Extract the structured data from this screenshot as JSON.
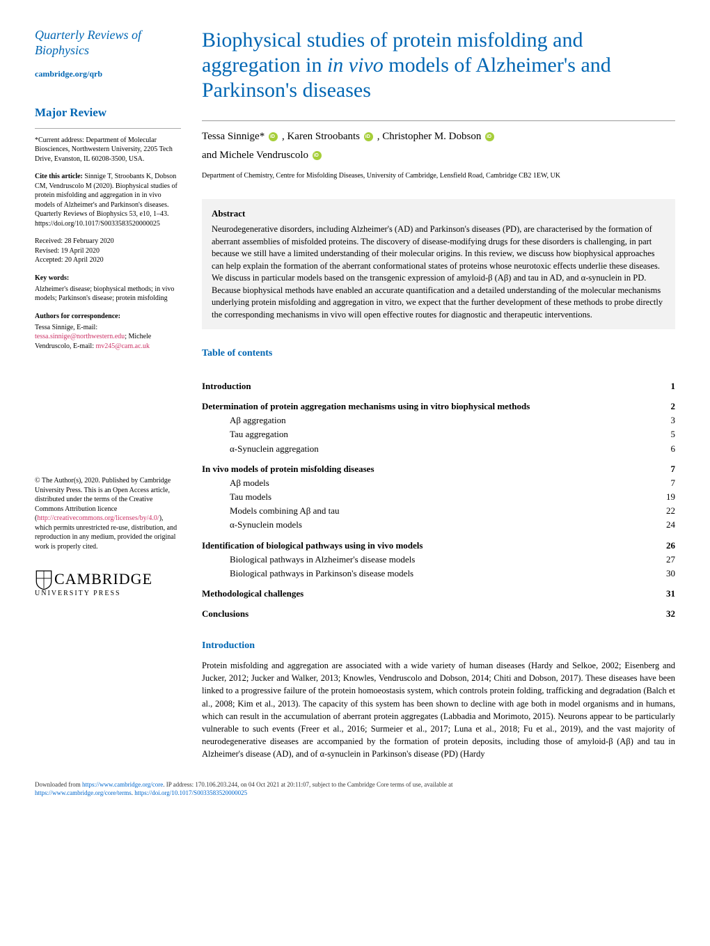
{
  "journal": {
    "title": "Quarterly Reviews of Biophysics",
    "url": "cambridge.org/qrb"
  },
  "section_label": "Major Review",
  "current_address": "*Current address: Department of Molecular Biosciences, Northwestern University, 2205 Tech Drive, Evanston, IL 60208-3500, USA.",
  "cite_label": "Cite this article:",
  "cite_text": "Sinnige T, Stroobants K, Dobson CM, Vendruscolo M (2020). Biophysical studies of protein misfolding and aggregation in in vivo models of Alzheimer's and Parkinson's diseases. Quarterly Reviews of Biophysics 53, e10, 1–43. https://doi.org/10.1017/S0033583520000025",
  "received": "Received: 28 February 2020",
  "revised": "Revised: 19 April 2020",
  "accepted": "Accepted: 20 April 2020",
  "keywords_label": "Key words:",
  "keywords": "Alzheimer's disease; biophysical methods; in vivo models; Parkinson's disease; protein misfolding",
  "corr_label": "Authors for correspondence:",
  "corr_text": "Tessa Sinnige,\nE-mail: ",
  "corr_email1": "tessa.sinnige@northwestern.edu",
  "corr_text2": ";\nMichele Vendruscolo,\nE-mail: ",
  "corr_email2": "mv245@cam.ac.uk",
  "copyright": "© The Author(s), 2020. Published by Cambridge University Press. This is an Open Access article, distributed under the terms of the Creative Commons Attribution licence (",
  "copyright_link": "http://creativecommons.org/licenses/by/4.0/",
  "copyright2": "), which permits unrestricted re-use, distribution, and reproduction in any medium, provided the original work is properly cited.",
  "logo": {
    "name": "CAMBRIDGE",
    "subtitle": "UNIVERSITY PRESS"
  },
  "title_part1": "Biophysical studies of protein misfolding and aggregation in ",
  "title_italic": "in vivo",
  "title_part2": " models of Alzheimer's and Parkinson's diseases",
  "authors": {
    "a1": "Tessa Sinnige*",
    "a2": "Karen Stroobants",
    "a3": "Christopher M. Dobson",
    "a4_pre": "and ",
    "a4": "Michele Vendruscolo"
  },
  "affiliation": "Department of Chemistry, Centre for Misfolding Diseases, University of Cambridge, Lensfield Road, Cambridge CB2 1EW, UK",
  "abstract_heading": "Abstract",
  "abstract": "Neurodegenerative disorders, including Alzheimer's (AD) and Parkinson's diseases (PD), are characterised by the formation of aberrant assemblies of misfolded proteins. The discovery of disease-modifying drugs for these disorders is challenging, in part because we still have a limited understanding of their molecular origins. In this review, we discuss how biophysical approaches can help explain the formation of the aberrant conformational states of proteins whose neurotoxic effects underlie these diseases. We discuss in particular models based on the transgenic expression of amyloid-β (Aβ) and tau in AD, and α-synuclein in PD. Because biophysical methods have enabled an accurate quantification and a detailed understanding of the molecular mechanisms underlying protein misfolding and aggregation in vitro, we expect that the further development of these methods to probe directly the corresponding mechanisms in vivo will open effective routes for diagnostic and therapeutic interventions.",
  "toc_heading": "Table of contents",
  "toc": [
    {
      "label": "Introduction",
      "page": "1",
      "level": 1
    },
    {
      "label": "Determination of protein aggregation mechanisms using in vitro biophysical methods",
      "page": "2",
      "level": 1
    },
    {
      "label": "Aβ aggregation",
      "page": "3",
      "level": 2
    },
    {
      "label": "Tau aggregation",
      "page": "5",
      "level": 2
    },
    {
      "label": "α-Synuclein aggregation",
      "page": "6",
      "level": 2
    },
    {
      "label": "In vivo models of protein misfolding diseases",
      "page": "7",
      "level": 1
    },
    {
      "label": "Aβ models",
      "page": "7",
      "level": 2
    },
    {
      "label": "Tau models",
      "page": "19",
      "level": 2
    },
    {
      "label": "Models combining Aβ and tau",
      "page": "22",
      "level": 2
    },
    {
      "label": "α-Synuclein models",
      "page": "24",
      "level": 2
    },
    {
      "label": "Identification of biological pathways using in vivo models",
      "page": "26",
      "level": 1
    },
    {
      "label": "Biological pathways in Alzheimer's disease models",
      "page": "27",
      "level": 2
    },
    {
      "label": "Biological pathways in Parkinson's disease models",
      "page": "30",
      "level": 2
    },
    {
      "label": "Methodological challenges",
      "page": "31",
      "level": 1
    },
    {
      "label": "Conclusions",
      "page": "32",
      "level": 1
    }
  ],
  "intro_heading": "Introduction",
  "intro_text": "Protein misfolding and aggregation are associated with a wide variety of human diseases (Hardy and Selkoe, 2002; Eisenberg and Jucker, 2012; Jucker and Walker, 2013; Knowles, Vendruscolo and Dobson, 2014; Chiti and Dobson, 2017). These diseases have been linked to a progressive failure of the protein homoeostasis system, which controls protein folding, trafficking and degradation (Balch et al., 2008; Kim et al., 2013). The capacity of this system has been shown to decline with age both in model organisms and in humans, which can result in the accumulation of aberrant protein aggregates (Labbadia and Morimoto, 2015). Neurons appear to be particularly vulnerable to such events (Freer et al., 2016; Surmeier et al., 2017; Luna et al., 2018; Fu et al., 2019), and the vast majority of neurodegenerative diseases are accompanied by the formation of protein deposits, including those of amyloid-β (Aβ) and tau in Alzheimer's disease (AD), and of α-synuclein in Parkinson's disease (PD) (Hardy",
  "footer": {
    "line1_pre": "Downloaded from ",
    "line1_link": "https://www.cambridge.org/core",
    "line1_post": ". IP address: 170.106.203.244, on 04 Oct 2021 at 20:11:07, subject to the Cambridge Core terms of use, available at",
    "line2_link1": "https://www.cambridge.org/core/terms",
    "line2_mid": ". ",
    "line2_link2": "https://doi.org/10.1017/S0033583520000025"
  },
  "colors": {
    "blue": "#0066b3",
    "pink": "#cc3366",
    "gray_bg": "#f2f2f2",
    "orcid_green": "#a6ce39"
  }
}
